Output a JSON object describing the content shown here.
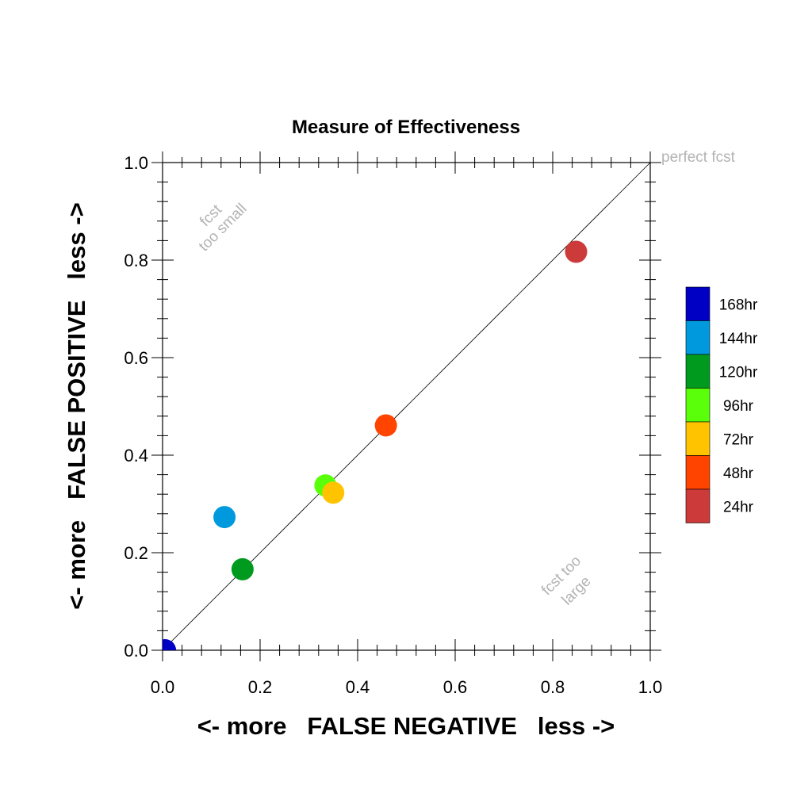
{
  "chart_data": {
    "type": "scatter",
    "title": "Measure of Effectiveness",
    "xlabel": "<- more   FALSE NEGATIVE   less ->",
    "ylabel": "<- more   FALSE POSITIVE   less ->",
    "xlim": [
      0,
      1
    ],
    "ylim": [
      0,
      1
    ],
    "xticks": [
      "0.0",
      "0.2",
      "0.4",
      "0.6",
      "0.8",
      "1.0"
    ],
    "yticks": [
      "0.0",
      "0.2",
      "0.4",
      "0.6",
      "0.8",
      "1.0"
    ],
    "grid": false,
    "diagonal_line": true,
    "legend_position": "right",
    "annotations": {
      "perfect": "perfect fcst",
      "too_small": [
        "fcst",
        "too small"
      ],
      "too_large": [
        "fcst too",
        "large"
      ]
    },
    "series": [
      {
        "name": "168hr",
        "x": 0.005,
        "y": 0.0,
        "color": "#0000c4"
      },
      {
        "name": "144hr",
        "x": 0.127,
        "y": 0.273,
        "color": "#0099dd"
      },
      {
        "name": "120hr",
        "x": 0.164,
        "y": 0.166,
        "color": "#009a1e"
      },
      {
        "name": "96hr",
        "x": 0.334,
        "y": 0.338,
        "color": "#5aff0a"
      },
      {
        "name": "72hr",
        "x": 0.35,
        "y": 0.323,
        "color": "#ffc300"
      },
      {
        "name": "48hr",
        "x": 0.458,
        "y": 0.461,
        "color": "#ff4400"
      },
      {
        "name": "24hr",
        "x": 0.848,
        "y": 0.817,
        "color": "#cc3a3a"
      }
    ]
  }
}
